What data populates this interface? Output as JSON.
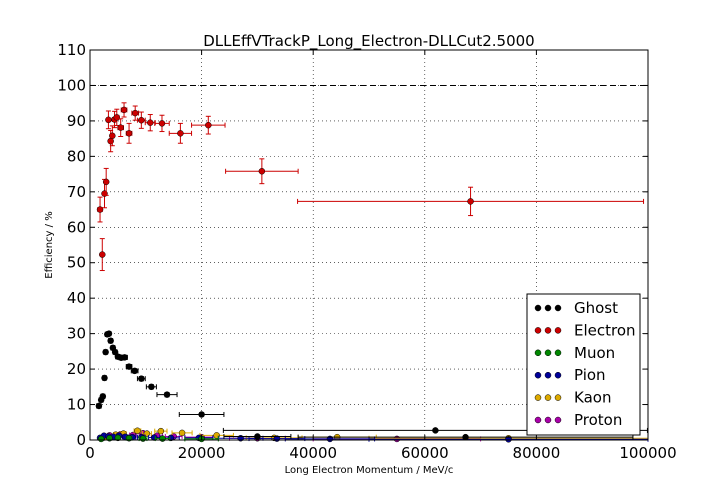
{
  "chart_data": {
    "type": "scatter",
    "title": "DLLEffVTrackP_Long_Electron-DLLCut2.5000",
    "xlabel": "Long Electron Momentum / MeV/c",
    "ylabel": "Efficiency / %",
    "xlim": [
      0,
      100000
    ],
    "ylim": [
      0,
      110
    ],
    "xticks": [
      "0",
      "20000",
      "40000",
      "60000",
      "80000",
      "100000"
    ],
    "yticks": [
      "0",
      "10",
      "20",
      "30",
      "40",
      "50",
      "60",
      "70",
      "80",
      "90",
      "100",
      "110"
    ],
    "grid": true,
    "reference_line_y": 100,
    "legend_position": "lower-right",
    "series": [
      {
        "name": "Electron",
        "color": "#cc0000",
        "points": [
          {
            "x": 1800,
            "y": 65.0,
            "xerr": 400,
            "yerr": 3.5
          },
          {
            "x": 2200,
            "y": 52.3,
            "xerr": 200,
            "yerr": 4.5
          },
          {
            "x": 2600,
            "y": 69.5,
            "xerr": 200,
            "yerr": 4.0
          },
          {
            "x": 2900,
            "y": 72.8,
            "xerr": 200,
            "yerr": 3.8
          },
          {
            "x": 3300,
            "y": 90.3,
            "xerr": 300,
            "yerr": 2.5
          },
          {
            "x": 3700,
            "y": 84.3,
            "xerr": 300,
            "yerr": 3.0
          },
          {
            "x": 4000,
            "y": 85.8,
            "xerr": 300,
            "yerr": 2.8
          },
          {
            "x": 4400,
            "y": 90.4,
            "xerr": 400,
            "yerr": 2.3
          },
          {
            "x": 4800,
            "y": 91.0,
            "xerr": 400,
            "yerr": 2.3
          },
          {
            "x": 5500,
            "y": 88.1,
            "xerr": 500,
            "yerr": 2.5
          },
          {
            "x": 6100,
            "y": 93.1,
            "xerr": 500,
            "yerr": 2.0
          },
          {
            "x": 7000,
            "y": 86.5,
            "xerr": 500,
            "yerr": 2.8
          },
          {
            "x": 8100,
            "y": 92.2,
            "xerr": 600,
            "yerr": 2.0
          },
          {
            "x": 9200,
            "y": 90.2,
            "xerr": 700,
            "yerr": 2.3
          },
          {
            "x": 10800,
            "y": 89.5,
            "xerr": 900,
            "yerr": 2.3
          },
          {
            "x": 12900,
            "y": 89.3,
            "xerr": 1300,
            "yerr": 2.3
          },
          {
            "x": 16200,
            "y": 86.5,
            "xerr": 2000,
            "yerr": 2.8
          },
          {
            "x": 21200,
            "y": 88.8,
            "xerr": 3000,
            "yerr": 2.5
          },
          {
            "x": 30800,
            "y": 75.8,
            "xerr": 6500,
            "yerr": 3.5
          },
          {
            "x": 68200,
            "y": 67.3,
            "xerr": 31000,
            "yerr": 4.0
          }
        ]
      },
      {
        "name": "Ghost",
        "color": "#000000",
        "points": [
          {
            "x": 1600,
            "y": 9.6,
            "xerr": 400,
            "yerr": 0.6
          },
          {
            "x": 2000,
            "y": 11.3,
            "xerr": 200,
            "yerr": 0.6
          },
          {
            "x": 2300,
            "y": 12.3,
            "xerr": 200,
            "yerr": 0.6
          },
          {
            "x": 2600,
            "y": 17.5,
            "xerr": 200,
            "yerr": 0.6
          },
          {
            "x": 2800,
            "y": 24.8,
            "xerr": 200,
            "yerr": 0.6
          },
          {
            "x": 3100,
            "y": 29.8,
            "xerr": 200,
            "yerr": 0.6
          },
          {
            "x": 3400,
            "y": 30.0,
            "xerr": 200,
            "yerr": 0.6
          },
          {
            "x": 3700,
            "y": 28.0,
            "xerr": 300,
            "yerr": 0.6
          },
          {
            "x": 4100,
            "y": 26.0,
            "xerr": 300,
            "yerr": 0.6
          },
          {
            "x": 4500,
            "y": 24.8,
            "xerr": 300,
            "yerr": 0.6
          },
          {
            "x": 5000,
            "y": 23.5,
            "xerr": 400,
            "yerr": 0.6
          },
          {
            "x": 5600,
            "y": 23.2,
            "xerr": 400,
            "yerr": 0.6
          },
          {
            "x": 6200,
            "y": 23.3,
            "xerr": 500,
            "yerr": 0.6
          },
          {
            "x": 7000,
            "y": 20.7,
            "xerr": 500,
            "yerr": 0.6
          },
          {
            "x": 8000,
            "y": 19.5,
            "xerr": 600,
            "yerr": 0.6
          },
          {
            "x": 9200,
            "y": 17.3,
            "xerr": 700,
            "yerr": 0.6
          },
          {
            "x": 11000,
            "y": 15.0,
            "xerr": 900,
            "yerr": 0.6
          },
          {
            "x": 13800,
            "y": 12.8,
            "xerr": 1800,
            "yerr": 0.6
          },
          {
            "x": 20000,
            "y": 7.2,
            "xerr": 4000,
            "yerr": 0.5
          },
          {
            "x": 30000,
            "y": 1.0,
            "xerr": 6000,
            "yerr": 0.4
          },
          {
            "x": 61900,
            "y": 2.7,
            "xerr": 38000,
            "yerr": 0.4
          },
          {
            "x": 67300,
            "y": 0.8,
            "xerr": 30000,
            "yerr": 0.4
          }
        ]
      },
      {
        "name": "Muon",
        "color": "#008800",
        "points": [
          {
            "x": 2000,
            "y": 0.3,
            "xerr": 300,
            "yerr": 0.2
          },
          {
            "x": 3500,
            "y": 0.5,
            "xerr": 300,
            "yerr": 0.2
          },
          {
            "x": 5000,
            "y": 0.6,
            "xerr": 400,
            "yerr": 0.2
          },
          {
            "x": 7000,
            "y": 0.5,
            "xerr": 500,
            "yerr": 0.2
          },
          {
            "x": 9500,
            "y": 0.4,
            "xerr": 700,
            "yerr": 0.2
          },
          {
            "x": 13000,
            "y": 0.4,
            "xerr": 1300,
            "yerr": 0.2
          },
          {
            "x": 20000,
            "y": 0.3,
            "xerr": 3000,
            "yerr": 0.2
          }
        ]
      },
      {
        "name": "Pion",
        "color": "#000099",
        "points": [
          {
            "x": 1800,
            "y": 0.6,
            "xerr": 300,
            "yerr": 0.2
          },
          {
            "x": 2500,
            "y": 1.2,
            "xerr": 200,
            "yerr": 0.2
          },
          {
            "x": 3300,
            "y": 1.0,
            "xerr": 300,
            "yerr": 0.2
          },
          {
            "x": 4200,
            "y": 0.9,
            "xerr": 300,
            "yerr": 0.2
          },
          {
            "x": 5200,
            "y": 1.2,
            "xerr": 400,
            "yerr": 0.2
          },
          {
            "x": 6300,
            "y": 0.9,
            "xerr": 500,
            "yerr": 0.2
          },
          {
            "x": 7600,
            "y": 0.8,
            "xerr": 600,
            "yerr": 0.2
          },
          {
            "x": 9200,
            "y": 0.8,
            "xerr": 700,
            "yerr": 0.2
          },
          {
            "x": 11500,
            "y": 0.7,
            "xerr": 1000,
            "yerr": 0.2
          },
          {
            "x": 14500,
            "y": 0.6,
            "xerr": 1500,
            "yerr": 0.2
          },
          {
            "x": 19500,
            "y": 0.6,
            "xerr": 2500,
            "yerr": 0.2
          },
          {
            "x": 27000,
            "y": 0.5,
            "xerr": 4000,
            "yerr": 0.2
          },
          {
            "x": 33500,
            "y": 0.4,
            "xerr": 5000,
            "yerr": 0.2
          },
          {
            "x": 43000,
            "y": 0.3,
            "xerr": 8000,
            "yerr": 0.2
          },
          {
            "x": 75000,
            "y": 0.2,
            "xerr": 25000,
            "yerr": 0.2
          }
        ]
      },
      {
        "name": "Kaon",
        "color": "#ddaa00",
        "points": [
          {
            "x": 3000,
            "y": 0.8,
            "xerr": 300,
            "yerr": 0.3
          },
          {
            "x": 4600,
            "y": 1.5,
            "xerr": 400,
            "yerr": 0.3
          },
          {
            "x": 6000,
            "y": 1.8,
            "xerr": 500,
            "yerr": 0.3
          },
          {
            "x": 8500,
            "y": 2.6,
            "xerr": 600,
            "yerr": 0.3
          },
          {
            "x": 10200,
            "y": 1.8,
            "xerr": 800,
            "yerr": 0.3
          },
          {
            "x": 12700,
            "y": 2.5,
            "xerr": 1100,
            "yerr": 0.3
          },
          {
            "x": 16500,
            "y": 2.0,
            "xerr": 1800,
            "yerr": 0.3
          },
          {
            "x": 22700,
            "y": 1.3,
            "xerr": 3000,
            "yerr": 0.3
          },
          {
            "x": 33000,
            "y": 0.6,
            "xerr": 5000,
            "yerr": 0.3
          },
          {
            "x": 44300,
            "y": 0.8,
            "xerr": 7000,
            "yerr": 0.3
          },
          {
            "x": 75000,
            "y": 0.5,
            "xerr": 25000,
            "yerr": 0.3
          }
        ]
      },
      {
        "name": "Proton",
        "color": "#aa00aa",
        "points": [
          {
            "x": 2500,
            "y": 0.7,
            "xerr": 300,
            "yerr": 0.3
          },
          {
            "x": 3500,
            "y": 1.3,
            "xerr": 300,
            "yerr": 0.3
          },
          {
            "x": 5500,
            "y": 1.6,
            "xerr": 400,
            "yerr": 0.3
          },
          {
            "x": 7700,
            "y": 1.4,
            "xerr": 600,
            "yerr": 0.3
          },
          {
            "x": 9500,
            "y": 1.9,
            "xerr": 700,
            "yerr": 0.3
          },
          {
            "x": 12000,
            "y": 1.2,
            "xerr": 1000,
            "yerr": 0.3
          },
          {
            "x": 15000,
            "y": 1.0,
            "xerr": 1500,
            "yerr": 0.3
          },
          {
            "x": 20000,
            "y": 0.8,
            "xerr": 3000,
            "yerr": 0.3
          },
          {
            "x": 30000,
            "y": 0.5,
            "xerr": 5000,
            "yerr": 0.3
          },
          {
            "x": 55000,
            "y": 0.3,
            "xerr": 15000,
            "yerr": 0.3
          }
        ]
      }
    ],
    "legend_order": [
      "Ghost",
      "Electron",
      "Muon",
      "Pion",
      "Kaon",
      "Proton"
    ]
  }
}
